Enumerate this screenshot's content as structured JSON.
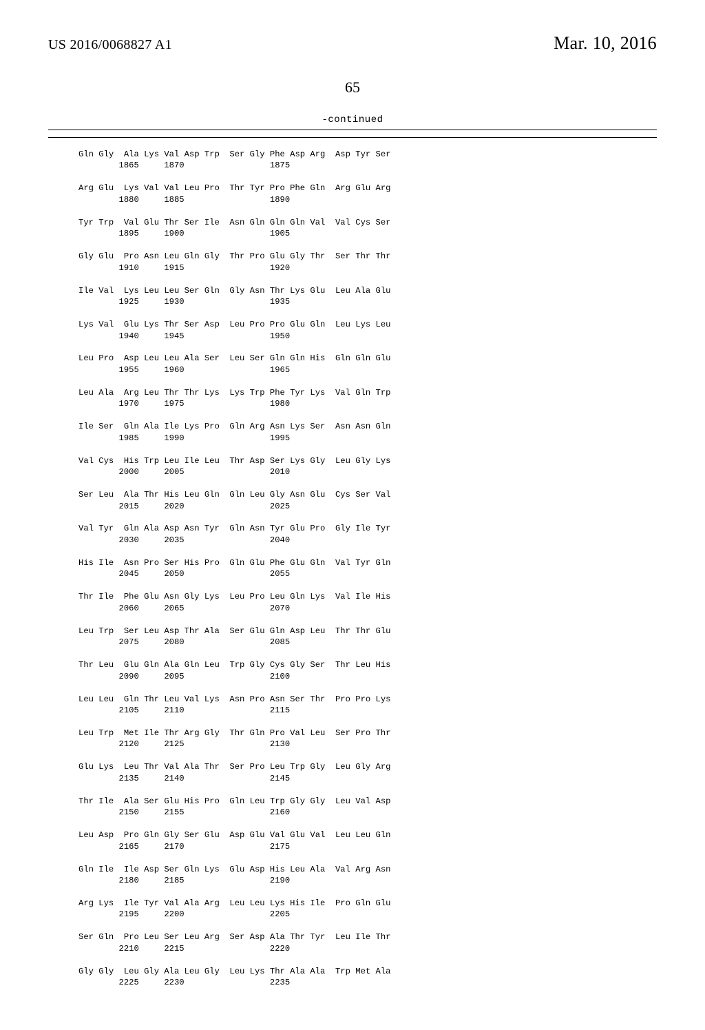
{
  "header": {
    "publication_number": "US 2016/0068827 A1",
    "publication_date": "Mar. 10, 2016"
  },
  "page_number": "65",
  "continued_label": "-continued",
  "seq": {
    "aa_gap": " ",
    "group_gap": "  ",
    "resnum_indent": "    ",
    "entries": [
      {
        "groups": [
          [
            "Gln",
            "Gly"
          ],
          [
            "Ala",
            "Lys",
            "Val",
            "Asp",
            "Trp"
          ],
          [
            "Ser",
            "Gly",
            "Phe",
            "Asp",
            "Arg"
          ],
          [
            "Asp",
            "Tyr",
            "Ser"
          ]
        ],
        "nums": [
          "1865",
          "1870",
          "1875"
        ]
      },
      {
        "groups": [
          [
            "Arg",
            "Glu"
          ],
          [
            "Lys",
            "Val",
            "Val",
            "Leu",
            "Pro"
          ],
          [
            "Thr",
            "Tyr",
            "Pro",
            "Phe",
            "Gln"
          ],
          [
            "Arg",
            "Glu",
            "Arg"
          ]
        ],
        "nums": [
          "1880",
          "1885",
          "1890"
        ]
      },
      {
        "groups": [
          [
            "Tyr",
            "Trp"
          ],
          [
            "Val",
            "Glu",
            "Thr",
            "Ser",
            "Ile"
          ],
          [
            "Asn",
            "Gln",
            "Gln",
            "Gln",
            "Val"
          ],
          [
            "Val",
            "Cys",
            "Ser"
          ]
        ],
        "nums": [
          "1895",
          "1900",
          "1905"
        ]
      },
      {
        "groups": [
          [
            "Gly",
            "Glu"
          ],
          [
            "Pro",
            "Asn",
            "Leu",
            "Gln",
            "Gly"
          ],
          [
            "Thr",
            "Pro",
            "Glu",
            "Gly",
            "Thr"
          ],
          [
            "Ser",
            "Thr",
            "Thr"
          ]
        ],
        "nums": [
          "1910",
          "1915",
          "1920"
        ]
      },
      {
        "groups": [
          [
            "Ile",
            "Val"
          ],
          [
            "Lys",
            "Leu",
            "Leu",
            "Ser",
            "Gln"
          ],
          [
            "Gly",
            "Asn",
            "Thr",
            "Lys",
            "Glu"
          ],
          [
            "Leu",
            "Ala",
            "Glu"
          ]
        ],
        "nums": [
          "1925",
          "1930",
          "1935"
        ]
      },
      {
        "groups": [
          [
            "Lys",
            "Val"
          ],
          [
            "Glu",
            "Lys",
            "Thr",
            "Ser",
            "Asp"
          ],
          [
            "Leu",
            "Pro",
            "Pro",
            "Glu",
            "Gln"
          ],
          [
            "Leu",
            "Lys",
            "Leu"
          ]
        ],
        "nums": [
          "1940",
          "1945",
          "1950"
        ]
      },
      {
        "groups": [
          [
            "Leu",
            "Pro"
          ],
          [
            "Asp",
            "Leu",
            "Leu",
            "Ala",
            "Ser"
          ],
          [
            "Leu",
            "Ser",
            "Gln",
            "Gln",
            "His"
          ],
          [
            "Gln",
            "Gln",
            "Glu"
          ]
        ],
        "nums": [
          "1955",
          "1960",
          "1965"
        ]
      },
      {
        "groups": [
          [
            "Leu",
            "Ala"
          ],
          [
            "Arg",
            "Leu",
            "Thr",
            "Thr",
            "Lys"
          ],
          [
            "Lys",
            "Trp",
            "Phe",
            "Tyr",
            "Lys"
          ],
          [
            "Val",
            "Gln",
            "Trp"
          ]
        ],
        "nums": [
          "1970",
          "1975",
          "1980"
        ]
      },
      {
        "groups": [
          [
            "Ile",
            "Ser"
          ],
          [
            "Gln",
            "Ala",
            "Ile",
            "Lys",
            "Pro"
          ],
          [
            "Gln",
            "Arg",
            "Asn",
            "Lys",
            "Ser"
          ],
          [
            "Asn",
            "Asn",
            "Gln"
          ]
        ],
        "nums": [
          "1985",
          "1990",
          "1995"
        ]
      },
      {
        "groups": [
          [
            "Val",
            "Cys"
          ],
          [
            "His",
            "Trp",
            "Leu",
            "Ile",
            "Leu"
          ],
          [
            "Thr",
            "Asp",
            "Ser",
            "Lys",
            "Gly"
          ],
          [
            "Leu",
            "Gly",
            "Lys"
          ]
        ],
        "nums": [
          "2000",
          "2005",
          "2010"
        ]
      },
      {
        "groups": [
          [
            "Ser",
            "Leu"
          ],
          [
            "Ala",
            "Thr",
            "His",
            "Leu",
            "Gln"
          ],
          [
            "Gln",
            "Leu",
            "Gly",
            "Asn",
            "Glu"
          ],
          [
            "Cys",
            "Ser",
            "Val"
          ]
        ],
        "nums": [
          "2015",
          "2020",
          "2025"
        ]
      },
      {
        "groups": [
          [
            "Val",
            "Tyr"
          ],
          [
            "Gln",
            "Ala",
            "Asp",
            "Asn",
            "Tyr"
          ],
          [
            "Gln",
            "Asn",
            "Tyr",
            "Glu",
            "Pro"
          ],
          [
            "Gly",
            "Ile",
            "Tyr"
          ]
        ],
        "nums": [
          "2030",
          "2035",
          "2040"
        ]
      },
      {
        "groups": [
          [
            "His",
            "Ile"
          ],
          [
            "Asn",
            "Pro",
            "Ser",
            "His",
            "Pro"
          ],
          [
            "Gln",
            "Glu",
            "Phe",
            "Glu",
            "Gln"
          ],
          [
            "Val",
            "Tyr",
            "Gln"
          ]
        ],
        "nums": [
          "2045",
          "2050",
          "2055"
        ]
      },
      {
        "groups": [
          [
            "Thr",
            "Ile"
          ],
          [
            "Phe",
            "Glu",
            "Asn",
            "Gly",
            "Lys"
          ],
          [
            "Leu",
            "Pro",
            "Leu",
            "Gln",
            "Lys"
          ],
          [
            "Val",
            "Ile",
            "His"
          ]
        ],
        "nums": [
          "2060",
          "2065",
          "2070"
        ]
      },
      {
        "groups": [
          [
            "Leu",
            "Trp"
          ],
          [
            "Ser",
            "Leu",
            "Asp",
            "Thr",
            "Ala"
          ],
          [
            "Ser",
            "Glu",
            "Gln",
            "Asp",
            "Leu"
          ],
          [
            "Thr",
            "Thr",
            "Glu"
          ]
        ],
        "nums": [
          "2075",
          "2080",
          "2085"
        ]
      },
      {
        "groups": [
          [
            "Thr",
            "Leu"
          ],
          [
            "Glu",
            "Gln",
            "Ala",
            "Gln",
            "Leu"
          ],
          [
            "Trp",
            "Gly",
            "Cys",
            "Gly",
            "Ser"
          ],
          [
            "Thr",
            "Leu",
            "His"
          ]
        ],
        "nums": [
          "2090",
          "2095",
          "2100"
        ]
      },
      {
        "groups": [
          [
            "Leu",
            "Leu"
          ],
          [
            "Gln",
            "Thr",
            "Leu",
            "Val",
            "Lys"
          ],
          [
            "Asn",
            "Pro",
            "Asn",
            "Ser",
            "Thr"
          ],
          [
            "Pro",
            "Pro",
            "Lys"
          ]
        ],
        "nums": [
          "2105",
          "2110",
          "2115"
        ]
      },
      {
        "groups": [
          [
            "Leu",
            "Trp"
          ],
          [
            "Met",
            "Ile",
            "Thr",
            "Arg",
            "Gly"
          ],
          [
            "Thr",
            "Gln",
            "Pro",
            "Val",
            "Leu"
          ],
          [
            "Ser",
            "Pro",
            "Thr"
          ]
        ],
        "nums": [
          "2120",
          "2125",
          "2130"
        ]
      },
      {
        "groups": [
          [
            "Glu",
            "Lys"
          ],
          [
            "Leu",
            "Thr",
            "Val",
            "Ala",
            "Thr"
          ],
          [
            "Ser",
            "Pro",
            "Leu",
            "Trp",
            "Gly"
          ],
          [
            "Leu",
            "Gly",
            "Arg"
          ]
        ],
        "nums": [
          "2135",
          "2140",
          "2145"
        ]
      },
      {
        "groups": [
          [
            "Thr",
            "Ile"
          ],
          [
            "Ala",
            "Ser",
            "Glu",
            "His",
            "Pro"
          ],
          [
            "Gln",
            "Leu",
            "Trp",
            "Gly",
            "Gly"
          ],
          [
            "Leu",
            "Val",
            "Asp"
          ]
        ],
        "nums": [
          "2150",
          "2155",
          "2160"
        ]
      },
      {
        "groups": [
          [
            "Leu",
            "Asp"
          ],
          [
            "Pro",
            "Gln",
            "Gly",
            "Ser",
            "Glu"
          ],
          [
            "Asp",
            "Glu",
            "Val",
            "Glu",
            "Val"
          ],
          [
            "Leu",
            "Leu",
            "Gln"
          ]
        ],
        "nums": [
          "2165",
          "2170",
          "2175"
        ]
      },
      {
        "groups": [
          [
            "Gln",
            "Ile"
          ],
          [
            "Ile",
            "Asp",
            "Ser",
            "Gln",
            "Lys"
          ],
          [
            "Glu",
            "Asp",
            "His",
            "Leu",
            "Ala"
          ],
          [
            "Val",
            "Arg",
            "Asn"
          ]
        ],
        "nums": [
          "2180",
          "2185",
          "2190"
        ]
      },
      {
        "groups": [
          [
            "Arg",
            "Lys"
          ],
          [
            "Ile",
            "Tyr",
            "Val",
            "Ala",
            "Arg"
          ],
          [
            "Leu",
            "Leu",
            "Lys",
            "His",
            "Ile"
          ],
          [
            "Pro",
            "Gln",
            "Glu"
          ]
        ],
        "nums": [
          "2195",
          "2200",
          "2205"
        ]
      },
      {
        "groups": [
          [
            "Ser",
            "Gln"
          ],
          [
            "Pro",
            "Leu",
            "Ser",
            "Leu",
            "Arg"
          ],
          [
            "Ser",
            "Asp",
            "Ala",
            "Thr",
            "Tyr"
          ],
          [
            "Leu",
            "Ile",
            "Thr"
          ]
        ],
        "nums": [
          "2210",
          "2215",
          "2220"
        ]
      },
      {
        "groups": [
          [
            "Gly",
            "Gly"
          ],
          [
            "Leu",
            "Gly",
            "Ala",
            "Leu",
            "Gly"
          ],
          [
            "Leu",
            "Lys",
            "Thr",
            "Ala",
            "Ala"
          ],
          [
            "Trp",
            "Met",
            "Ala"
          ]
        ],
        "nums": [
          "2225",
          "2230",
          "2235"
        ]
      }
    ]
  }
}
